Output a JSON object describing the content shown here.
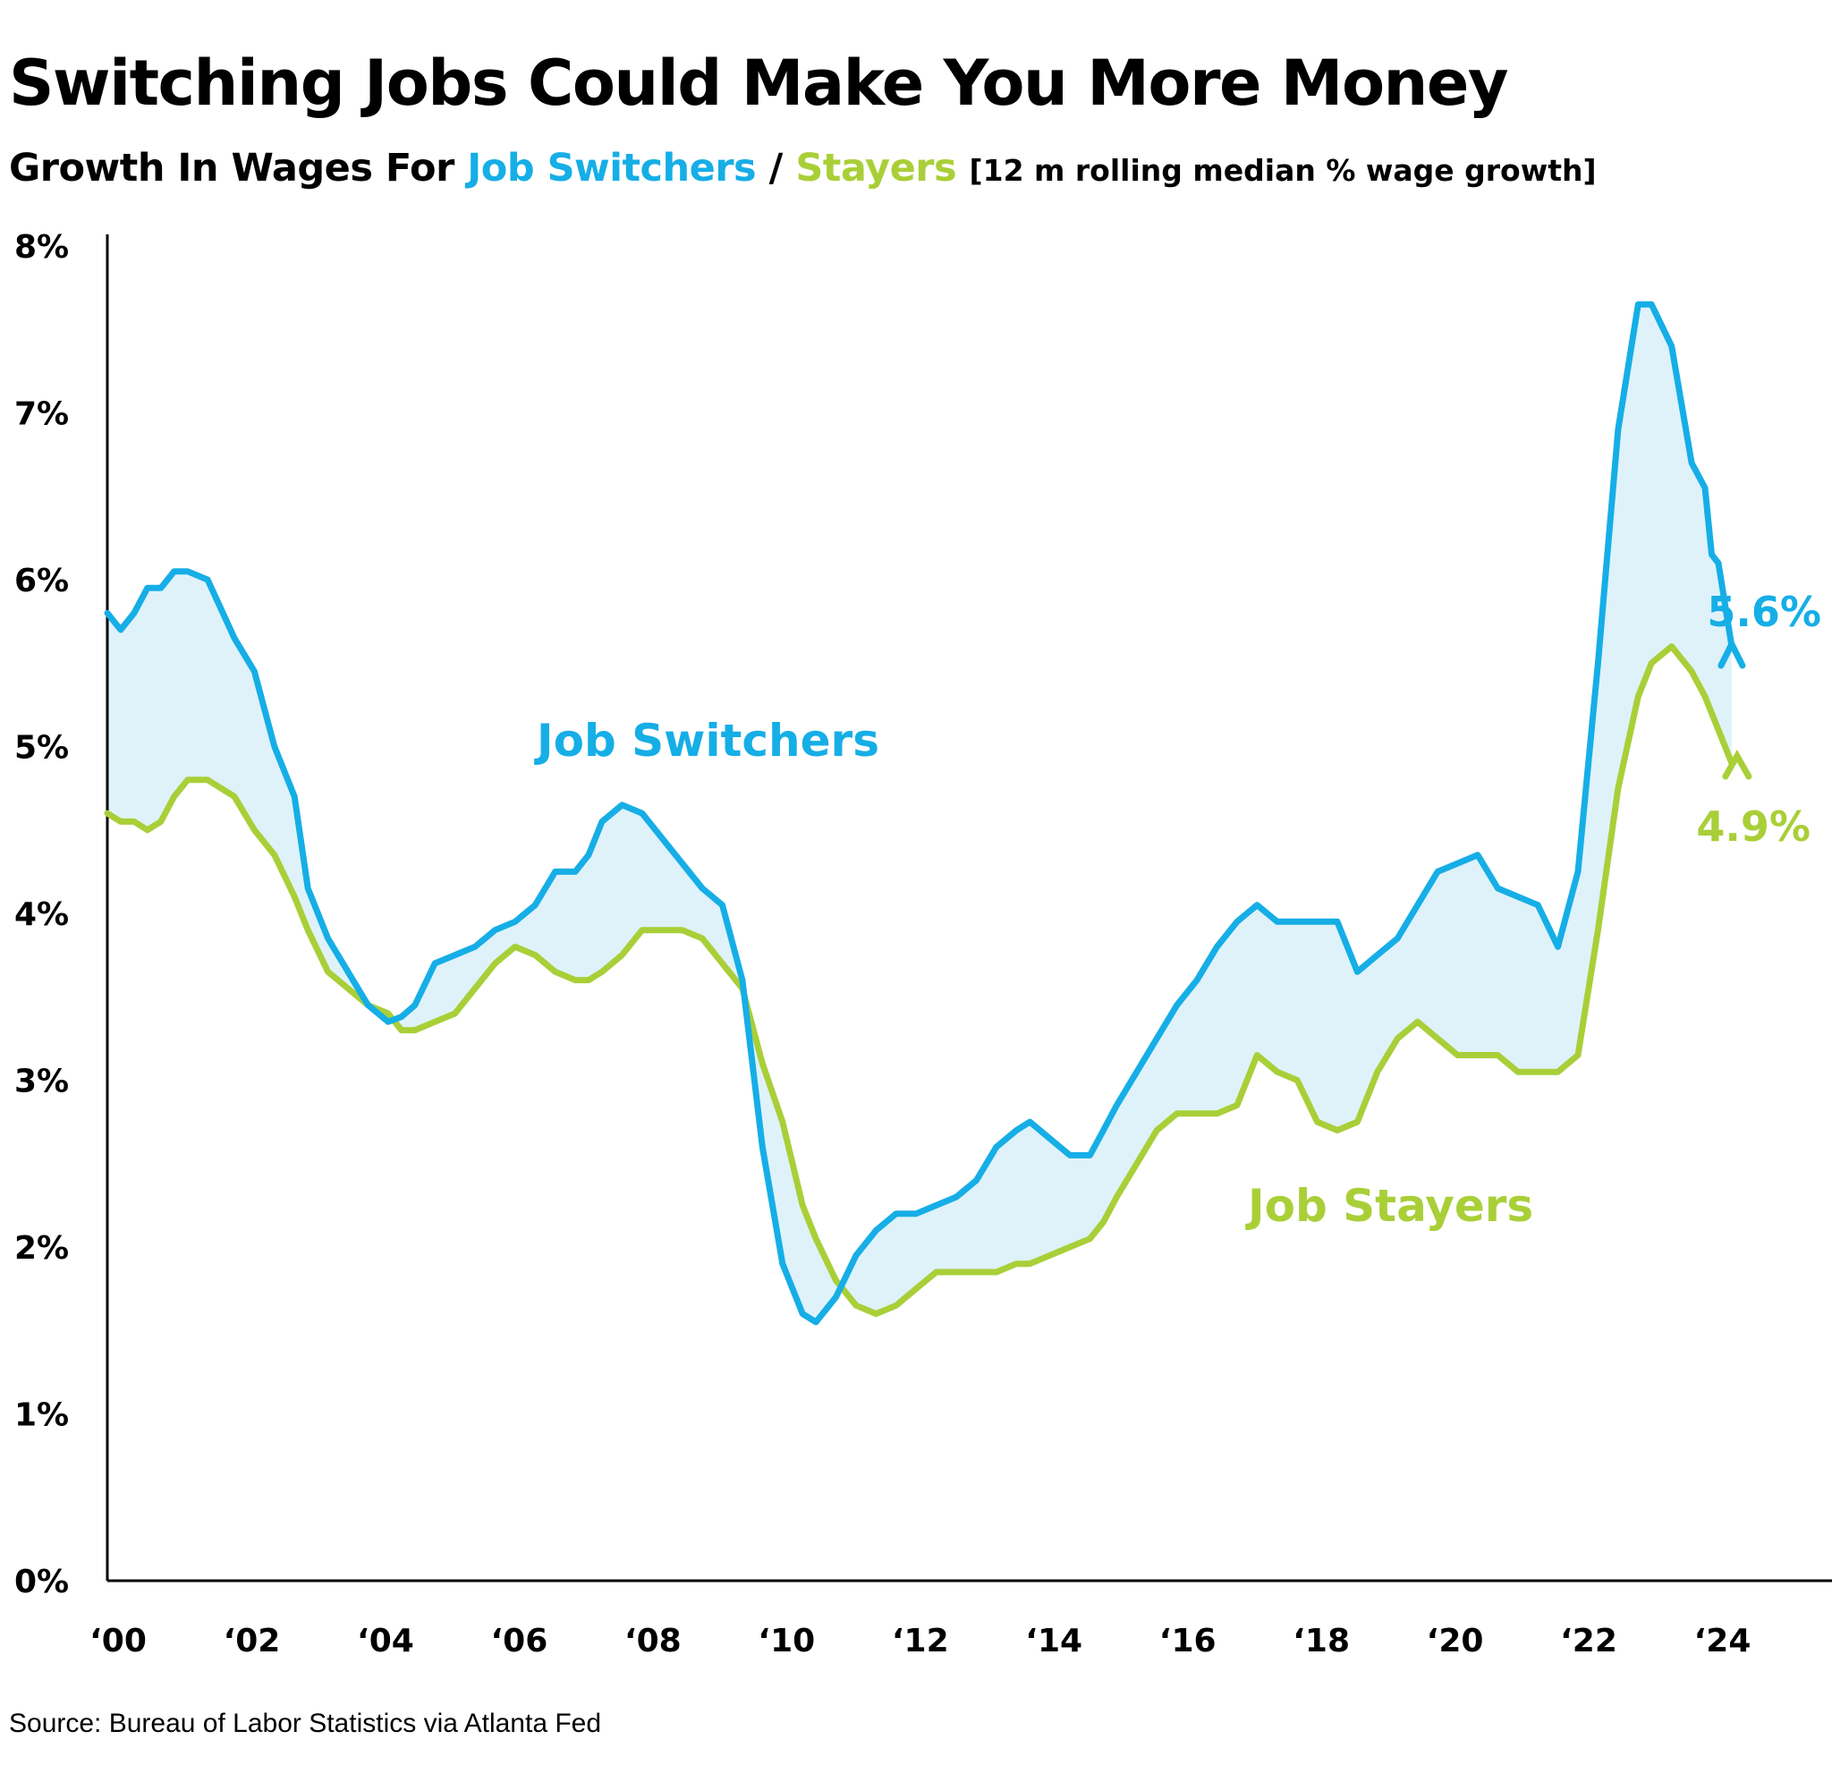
{
  "header": {
    "title": "Switching Jobs Could Make You More Money",
    "subtitle_prefix": "Growth In Wages For",
    "subtitle_switchers": "Job Switchers",
    "subtitle_sep": "/",
    "subtitle_stayers": "Stayers",
    "subtitle_note": "[12 m rolling median % wage growth]"
  },
  "footer": {
    "source": "Source: Bureau of Labor Statistics via Atlanta Fed"
  },
  "colors": {
    "switchers": "#16aee6",
    "stayers": "#a9cf38",
    "fill": "#dff2fa",
    "axis": "#000000"
  },
  "chart_data": {
    "type": "line",
    "title": "Switching Jobs Could Make You More Money",
    "subtitle": "Growth In Wages For Job Switchers / Stayers [12 m rolling median % wage growth]",
    "xlabel": "",
    "ylabel": "",
    "ylim": [
      0,
      8
    ],
    "xlim": [
      2000,
      2025.8
    ],
    "y_ticks": [
      0,
      1,
      2,
      3,
      4,
      5,
      6,
      7,
      8
    ],
    "y_tick_labels": [
      "0%",
      "1%",
      "2%",
      "3%",
      "4%",
      "5%",
      "6%",
      "7%",
      "8%"
    ],
    "x_ticks": [
      2000,
      2002,
      2004,
      2006,
      2008,
      2010,
      2012,
      2014,
      2016,
      2018,
      2020,
      2022,
      2024
    ],
    "x_tick_labels": [
      "‘00",
      "‘02",
      "‘04",
      "‘06",
      "‘08",
      "‘10",
      "‘12",
      "‘14",
      "‘16",
      "‘18",
      "‘20",
      "‘22",
      "‘24"
    ],
    "grid": false,
    "legend": "direct labels on lines",
    "shaded_between_series": true,
    "series": [
      {
        "name": "Job Switchers",
        "x": [
          2000.0,
          2000.2,
          2000.4,
          2000.6,
          2000.8,
          2001.0,
          2001.2,
          2001.5,
          2001.9,
          2002.2,
          2002.5,
          2002.8,
          2003.0,
          2003.3,
          2003.6,
          2003.9,
          2004.2,
          2004.4,
          2004.6,
          2004.9,
          2005.2,
          2005.5,
          2005.8,
          2006.1,
          2006.4,
          2006.7,
          2007.0,
          2007.2,
          2007.4,
          2007.7,
          2008.0,
          2008.3,
          2008.6,
          2008.9,
          2009.2,
          2009.5,
          2009.8,
          2010.1,
          2010.4,
          2010.6,
          2010.9,
          2011.2,
          2011.5,
          2011.8,
          2012.1,
          2012.4,
          2012.7,
          2013.0,
          2013.3,
          2013.6,
          2013.8,
          2014.1,
          2014.4,
          2014.7,
          2014.9,
          2015.1,
          2015.4,
          2015.7,
          2016.0,
          2016.3,
          2016.6,
          2016.9,
          2017.2,
          2017.5,
          2017.8,
          2018.1,
          2018.4,
          2018.7,
          2019.0,
          2019.3,
          2019.6,
          2019.9,
          2020.2,
          2020.5,
          2020.8,
          2021.1,
          2021.4,
          2021.7,
          2022.0,
          2022.3,
          2022.6,
          2022.9,
          2023.1,
          2023.4,
          2023.7,
          2023.9,
          2024.0,
          2024.1,
          2024.3
        ],
        "values": [
          5.8,
          5.7,
          5.8,
          5.95,
          5.95,
          6.05,
          6.05,
          6.0,
          5.65,
          5.45,
          5.0,
          4.7,
          4.15,
          3.85,
          3.65,
          3.45,
          3.35,
          3.38,
          3.45,
          3.7,
          3.75,
          3.8,
          3.9,
          3.95,
          4.05,
          4.25,
          4.25,
          4.35,
          4.55,
          4.65,
          4.6,
          4.45,
          4.3,
          4.15,
          4.05,
          3.6,
          2.6,
          1.9,
          1.6,
          1.55,
          1.7,
          1.95,
          2.1,
          2.2,
          2.2,
          2.25,
          2.3,
          2.4,
          2.6,
          2.7,
          2.75,
          2.65,
          2.55,
          2.55,
          2.7,
          2.85,
          3.05,
          3.25,
          3.45,
          3.6,
          3.8,
          3.95,
          4.05,
          3.95,
          3.95,
          3.95,
          3.95,
          3.65,
          3.75,
          3.85,
          4.05,
          4.25,
          4.3,
          4.35,
          4.15,
          4.1,
          4.05,
          3.8,
          4.25,
          5.5,
          6.9,
          7.65,
          7.65,
          7.4,
          6.7,
          6.55,
          6.15,
          6.1,
          5.6
        ],
        "end_label": "5.6%",
        "line_label": "Job Switchers"
      },
      {
        "name": "Job Stayers",
        "x": [
          2000.0,
          2000.2,
          2000.4,
          2000.6,
          2000.8,
          2001.0,
          2001.2,
          2001.5,
          2001.9,
          2002.2,
          2002.5,
          2002.8,
          2003.0,
          2003.3,
          2003.6,
          2003.9,
          2004.2,
          2004.4,
          2004.6,
          2004.9,
          2005.2,
          2005.5,
          2005.8,
          2006.1,
          2006.4,
          2006.7,
          2007.0,
          2007.2,
          2007.4,
          2007.7,
          2008.0,
          2008.3,
          2008.6,
          2008.9,
          2009.2,
          2009.5,
          2009.8,
          2010.1,
          2010.4,
          2010.6,
          2010.9,
          2011.2,
          2011.5,
          2011.8,
          2012.1,
          2012.4,
          2012.7,
          2013.0,
          2013.3,
          2013.6,
          2013.8,
          2014.1,
          2014.4,
          2014.7,
          2014.9,
          2015.1,
          2015.4,
          2015.7,
          2016.0,
          2016.3,
          2016.6,
          2016.9,
          2017.2,
          2017.5,
          2017.8,
          2018.1,
          2018.4,
          2018.7,
          2019.0,
          2019.3,
          2019.6,
          2019.9,
          2020.2,
          2020.5,
          2020.8,
          2021.1,
          2021.4,
          2021.7,
          2022.0,
          2022.3,
          2022.6,
          2022.9,
          2023.1,
          2023.4,
          2023.7,
          2023.9,
          2024.0,
          2024.1,
          2024.3
        ],
        "values": [
          4.6,
          4.55,
          4.55,
          4.5,
          4.55,
          4.7,
          4.8,
          4.8,
          4.7,
          4.5,
          4.35,
          4.1,
          3.9,
          3.65,
          3.55,
          3.45,
          3.4,
          3.3,
          3.3,
          3.35,
          3.4,
          3.55,
          3.7,
          3.8,
          3.75,
          3.65,
          3.6,
          3.6,
          3.65,
          3.75,
          3.9,
          3.9,
          3.9,
          3.85,
          3.7,
          3.55,
          3.1,
          2.75,
          2.25,
          2.05,
          1.8,
          1.65,
          1.6,
          1.65,
          1.75,
          1.85,
          1.85,
          1.85,
          1.85,
          1.9,
          1.9,
          1.95,
          2.0,
          2.05,
          2.15,
          2.3,
          2.5,
          2.7,
          2.8,
          2.8,
          2.8,
          2.85,
          3.15,
          3.05,
          3.0,
          2.75,
          2.7,
          2.75,
          3.05,
          3.25,
          3.35,
          3.25,
          3.15,
          3.15,
          3.15,
          3.05,
          3.05,
          3.05,
          3.15,
          3.9,
          4.75,
          5.3,
          5.5,
          5.6,
          5.45,
          5.3,
          5.2,
          5.1,
          4.9
        ],
        "end_label": "4.9%",
        "line_label": "Job Stayers"
      }
    ]
  }
}
